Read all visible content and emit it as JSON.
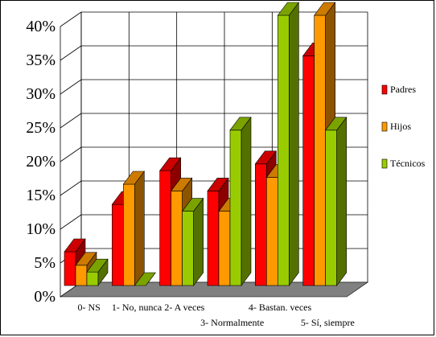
{
  "chart_data": {
    "type": "bar",
    "title": "",
    "xlabel": "",
    "ylabel": "",
    "categories": [
      "0- NS",
      "1- No, nunca",
      "2- A veces",
      "3- Normalmente",
      "4- Bastan. veces",
      "5- Sí, siempre"
    ],
    "series": [
      {
        "name": "Padres",
        "values": [
          5,
          12,
          17,
          14,
          18,
          34
        ],
        "color": "#ff0000"
      },
      {
        "name": "Hijos",
        "values": [
          3,
          15,
          14,
          11,
          16,
          40
        ],
        "color": "#ff9900"
      },
      {
        "name": "Técnicos",
        "values": [
          2,
          0,
          11,
          23,
          40,
          23
        ],
        "color": "#99cc00"
      }
    ],
    "yticks": [
      "0%",
      "5%",
      "10%",
      "15%",
      "20%",
      "25%",
      "30%",
      "35%",
      "40%"
    ],
    "ylim": [
      0,
      40
    ],
    "ytick_values": [
      0,
      5,
      10,
      15,
      20,
      25,
      30,
      35,
      40
    ],
    "grid": true,
    "legend": "right",
    "three_d": true,
    "colors": {
      "floor": "#808080",
      "grid": "#000000",
      "background": "#ffffff"
    }
  }
}
